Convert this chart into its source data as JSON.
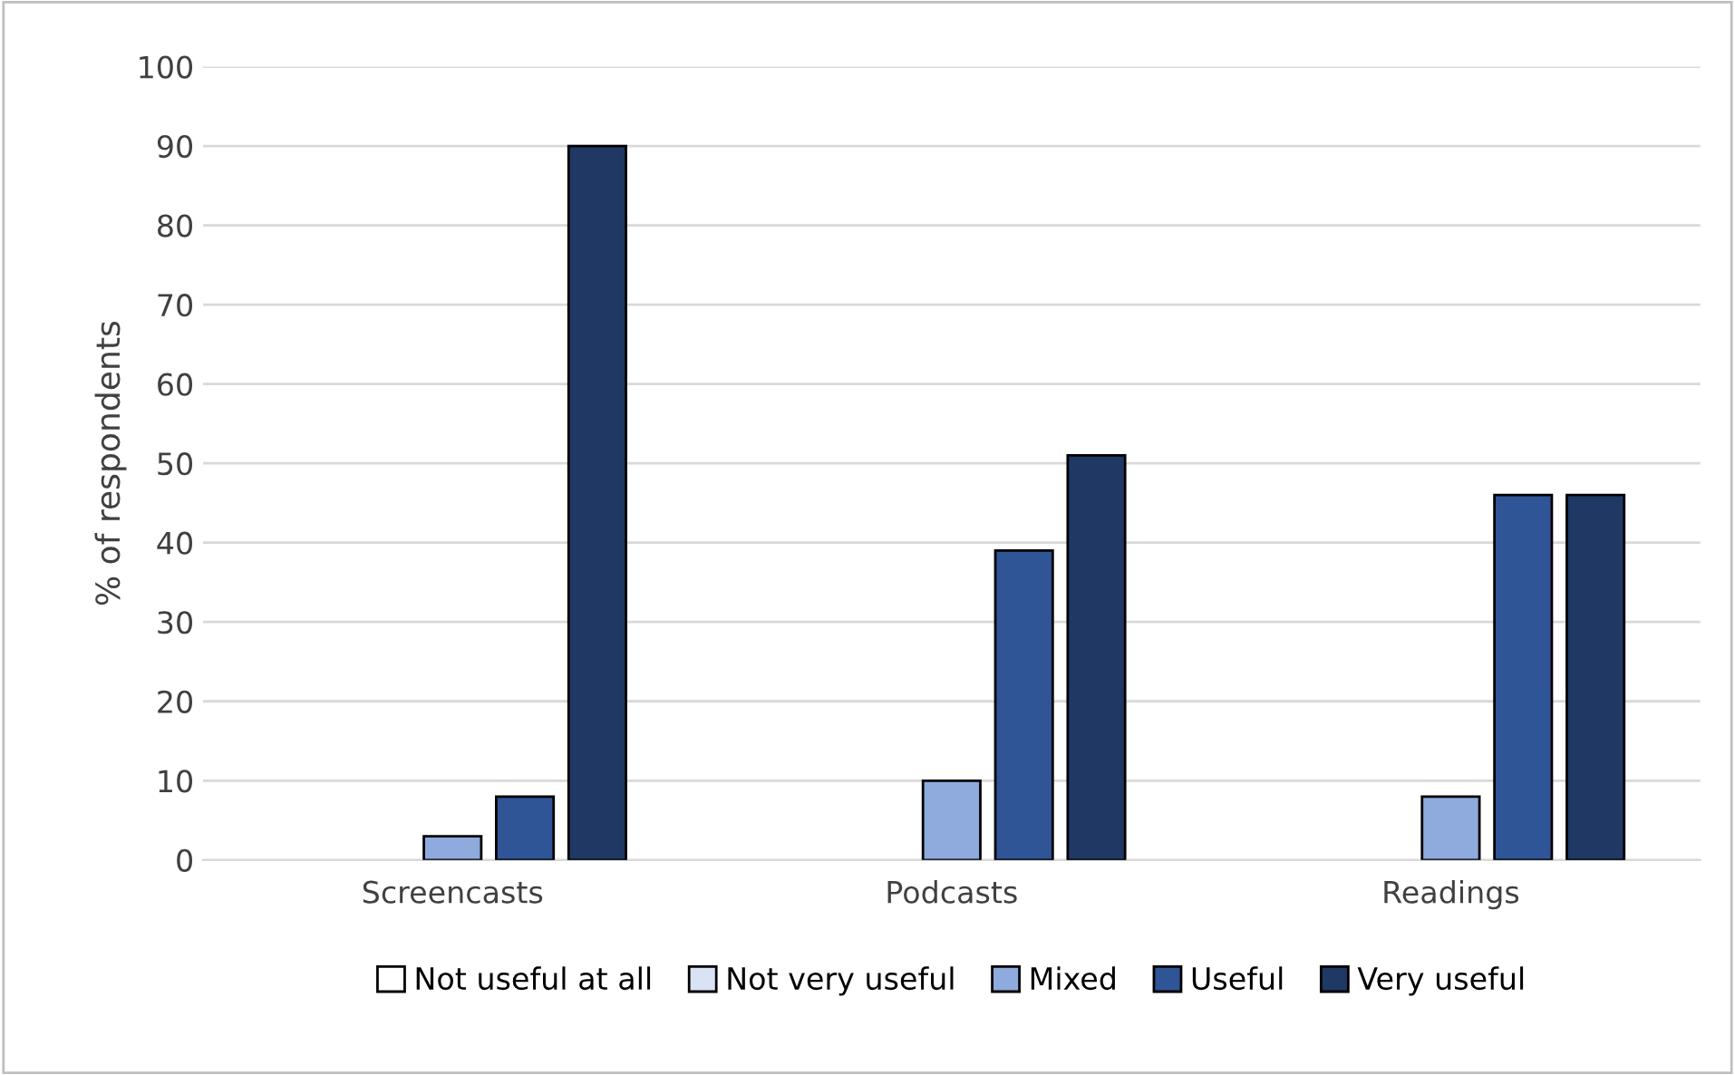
{
  "chart_data": {
    "type": "bar",
    "ylabel": "% of respondents",
    "categories": [
      "Screencasts",
      "Podcasts",
      "Readings"
    ],
    "series": [
      {
        "name": "Not useful at all",
        "color": "#ffffff",
        "values": [
          0,
          0,
          0
        ]
      },
      {
        "name": "Not very useful",
        "color": "#dae3f3",
        "values": [
          0,
          0,
          0
        ]
      },
      {
        "name": "Mixed",
        "color": "#8faadc",
        "values": [
          3,
          10,
          8
        ]
      },
      {
        "name": "Useful",
        "color": "#2f5597",
        "values": [
          8,
          39,
          46
        ]
      },
      {
        "name": "Very useful",
        "color": "#203864",
        "values": [
          90,
          51,
          46
        ]
      }
    ],
    "ylim": [
      0,
      100
    ],
    "yticks": [
      0,
      10,
      20,
      30,
      40,
      50,
      60,
      70,
      80,
      90,
      100
    ],
    "grid": "y",
    "legend": "bottom"
  }
}
